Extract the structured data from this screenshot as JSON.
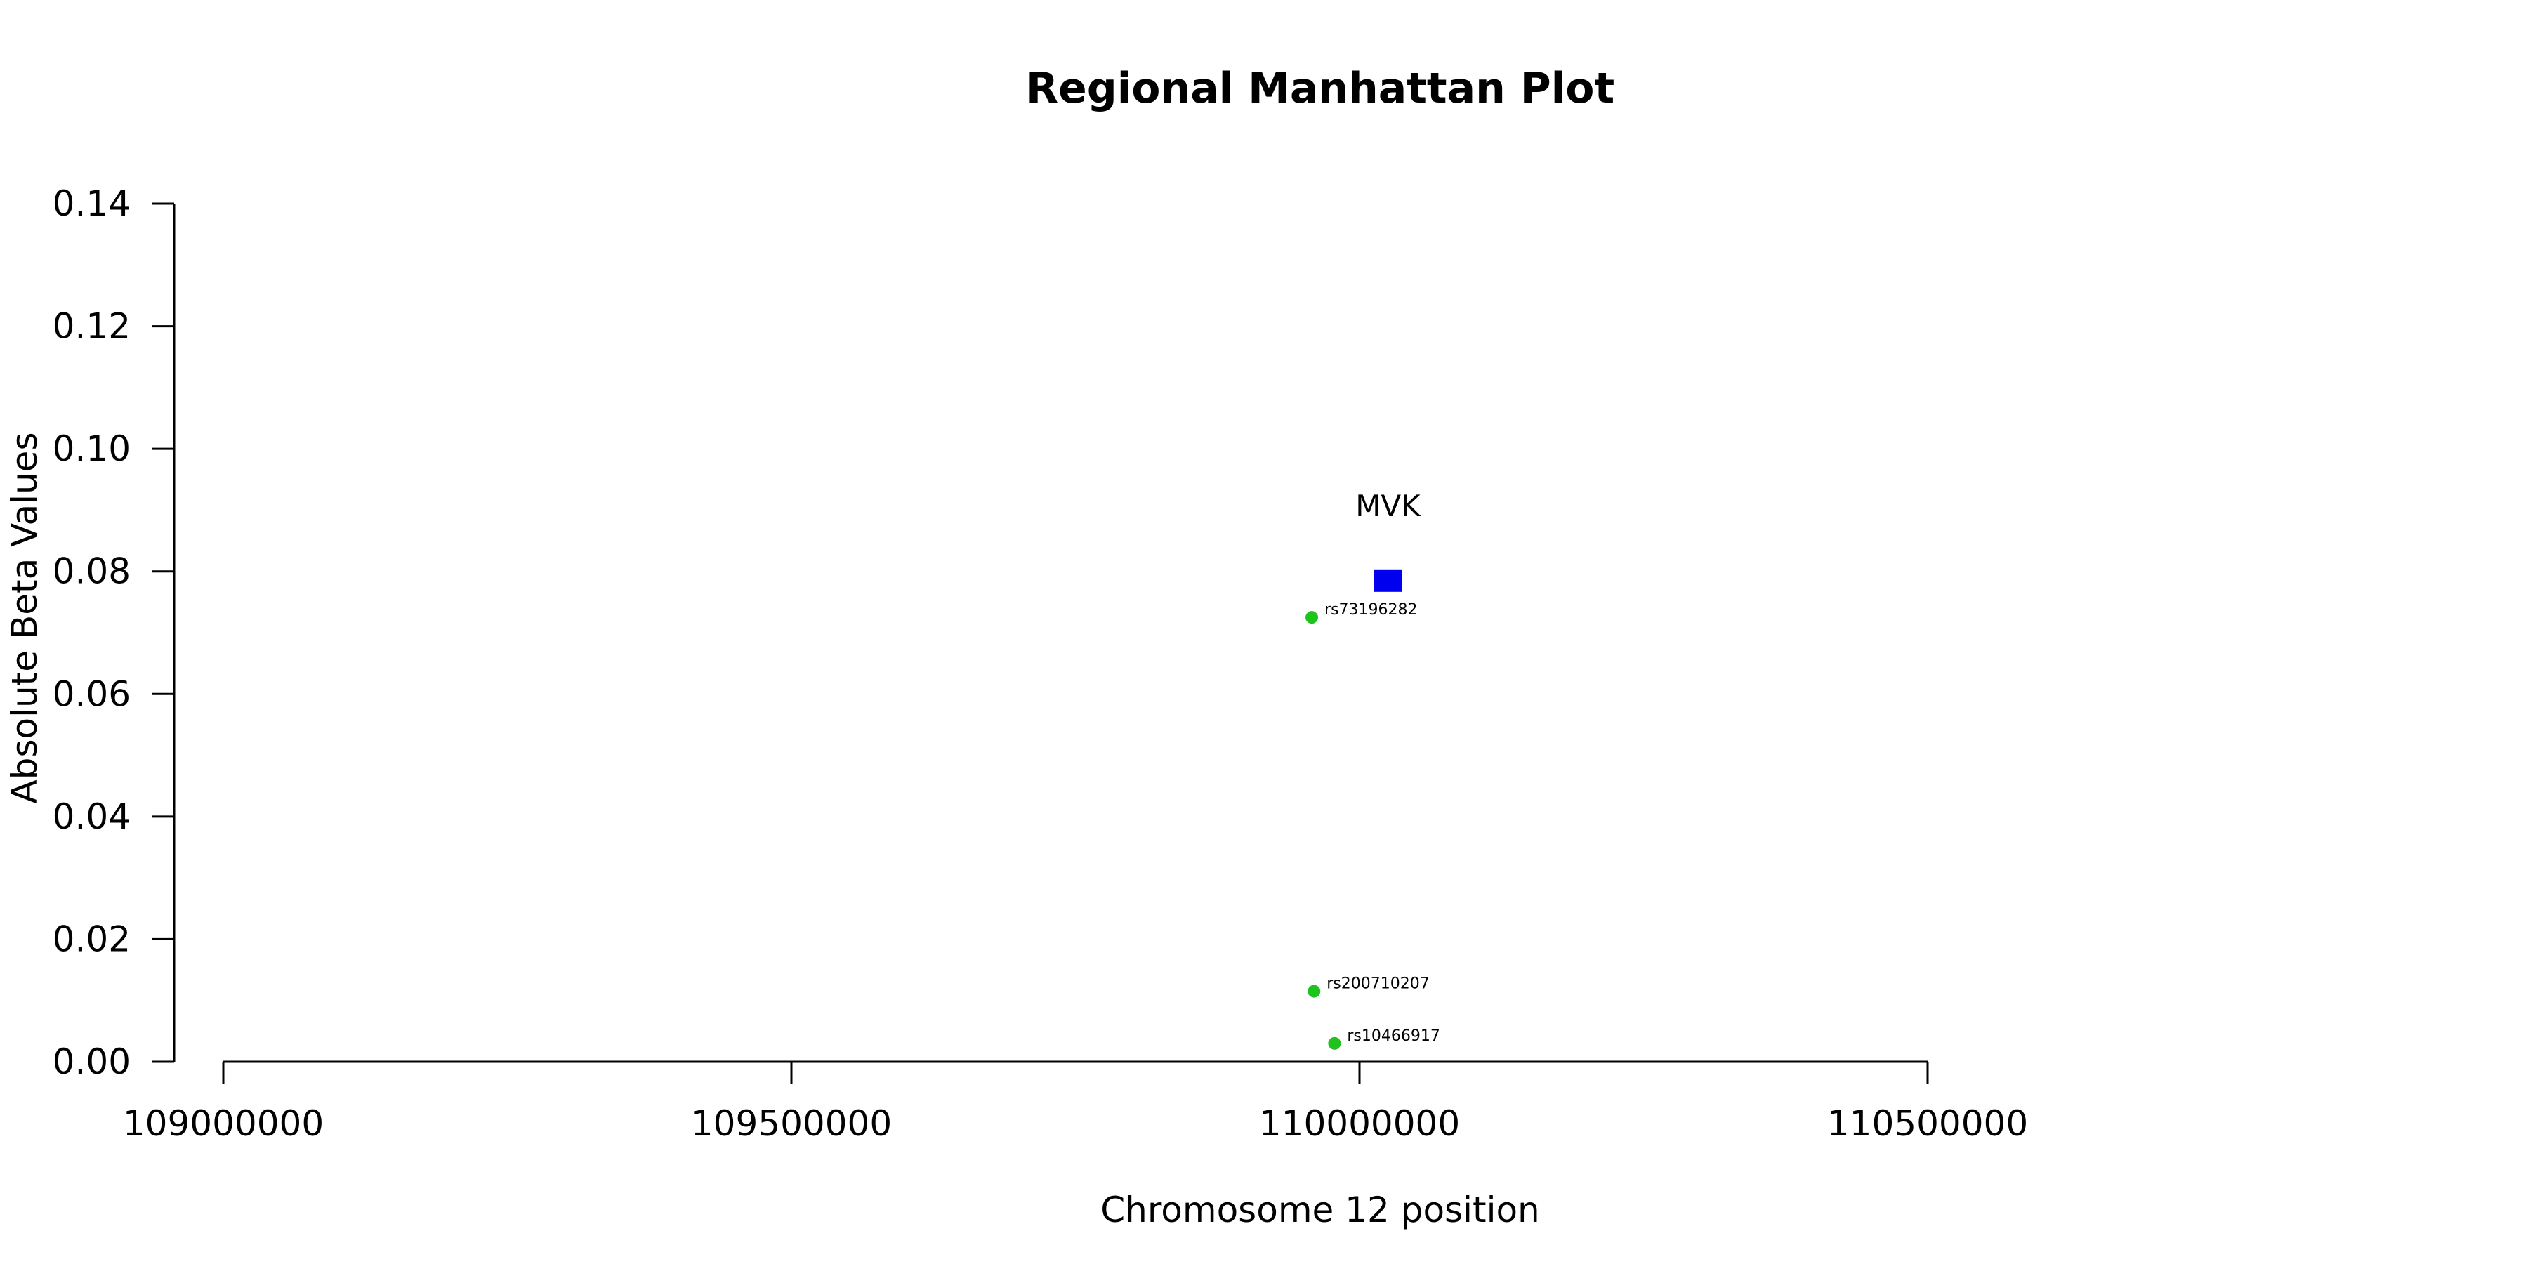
{
  "chart_data": {
    "type": "scatter",
    "title": "Regional Manhattan Plot",
    "xlabel": "Chromosome 12 position",
    "ylabel": "Absolute Beta Values",
    "xlim": [
      109000000,
      110500000
    ],
    "ylim": [
      0,
      0.14
    ],
    "x_ticks": [
      109000000,
      109500000,
      110000000,
      110500000
    ],
    "x_tick_labels": [
      "109000000",
      "109500000",
      "110000000",
      "110500000"
    ],
    "y_ticks": [
      0,
      0.02,
      0.04,
      0.06,
      0.08,
      0.1,
      0.12,
      0.14
    ],
    "y_tick_labels": [
      "0.00",
      "0.02",
      "0.04",
      "0.06",
      "0.08",
      "0.10",
      "0.12",
      "0.14"
    ],
    "grid": false,
    "genes": [
      {
        "label": "MVK",
        "x": 110025000,
        "y": 0.0785,
        "color": "#0000ee",
        "marker": "square"
      }
    ],
    "snps": [
      {
        "label": "rs73196282",
        "x": 109958000,
        "y": 0.0725,
        "color": "#1ec31e"
      },
      {
        "label": "rs200710207",
        "x": 109960000,
        "y": 0.0115,
        "color": "#1ec31e"
      },
      {
        "label": "rs10466917",
        "x": 109978000,
        "y": 0.003,
        "color": "#1ec31e"
      }
    ]
  }
}
